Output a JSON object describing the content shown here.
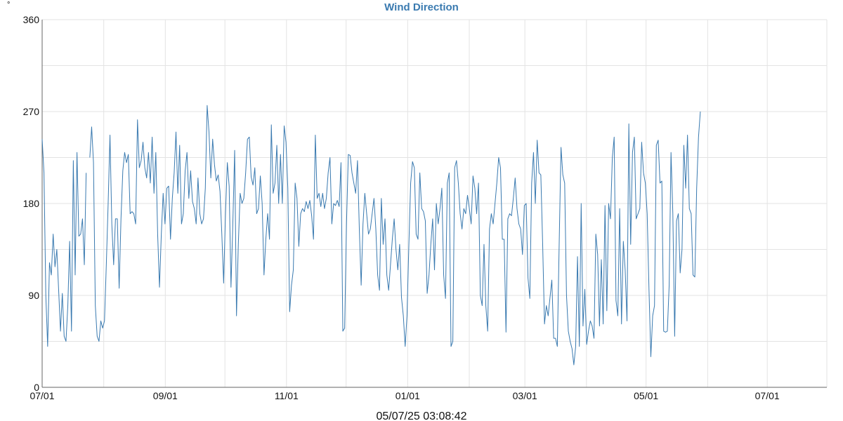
{
  "chart_data": {
    "type": "line",
    "title": "Wind Direction",
    "unit_label": "°",
    "ylim": [
      0,
      360
    ],
    "y_ticks": [
      "0",
      "90",
      "180",
      "270",
      "360"
    ],
    "x_ticks": [
      "07/01",
      "09/01",
      "11/01",
      "01/01",
      "03/01",
      "05/01",
      "07/01"
    ],
    "xlim": [
      "2024-07-01",
      "2025-07-31"
    ],
    "grid": true,
    "footer": "05/07/25 03:08:42",
    "series": [
      {
        "color": "#3a7ab0",
        "values": [
          243,
          210,
          90,
          40,
          122,
          110,
          150,
          118,
          135,
          95,
          55,
          92,
          50,
          45,
          80,
          143,
          55,
          222,
          110,
          230,
          148,
          150,
          165,
          120,
          210,
          null,
          225,
          255,
          220,
          80,
          50,
          45,
          65,
          58,
          65,
          120,
          180,
          247,
          160,
          120,
          165,
          165,
          97,
          165,
          212,
          230,
          220,
          228,
          170,
          172,
          170,
          160,
          262,
          215,
          222,
          240,
          215,
          205,
          230,
          200,
          245,
          190,
          230,
          150,
          98,
          150,
          190,
          160,
          195,
          197,
          145,
          185,
          210,
          250,
          190,
          237,
          160,
          170,
          212,
          230,
          185,
          212,
          182,
          175,
          160,
          205,
          170,
          160,
          165,
          195,
          276,
          250,
          205,
          243,
          218,
          202,
          208,
          192,
          150,
          102,
          170,
          220,
          197,
          98,
          160,
          232,
          70,
          140,
          190,
          180,
          185,
          210,
          243,
          245,
          206,
          198,
          215,
          170,
          175,
          207,
          180,
          110,
          145,
          170,
          145,
          257,
          190,
          200,
          237,
          180,
          228,
          180,
          256,
          240,
          195,
          74,
          100,
          115,
          200,
          185,
          138,
          170,
          175,
          172,
          182,
          175,
          183,
          168,
          145,
          247,
          185,
          190,
          177,
          190,
          175,
          185,
          210,
          225,
          160,
          180,
          178,
          183,
          177,
          220,
          55,
          58,
          160,
          228,
          227,
          210,
          200,
          190,
          222,
          155,
          100,
          160,
          190,
          170,
          150,
          155,
          170,
          185,
          155,
          110,
          95,
          185,
          140,
          165,
          110,
          95,
          120,
          145,
          165,
          135,
          115,
          140,
          88,
          70,
          40,
          70,
          138,
          200,
          221,
          215,
          150,
          145,
          210,
          175,
          172,
          163,
          92,
          110,
          140,
          165,
          115,
          180,
          160,
          175,
          195,
          110,
          87,
          200,
          210,
          40,
          45,
          215,
          222,
          200,
          170,
          155,
          175,
          170,
          188,
          175,
          160,
          207,
          195,
          170,
          200,
          90,
          80,
          140,
          80,
          55,
          155,
          170,
          160,
          180,
          200,
          225,
          215,
          145,
          145,
          54,
          165,
          170,
          168,
          185,
          205,
          175,
          160,
          155,
          130,
          178,
          180,
          107,
          87,
          200,
          230,
          180,
          242,
          210,
          208,
          140,
          62,
          80,
          70,
          88,
          105,
          48,
          48,
          40,
          140,
          235,
          208,
          200,
          90,
          55,
          45,
          38,
          22,
          40,
          128,
          40,
          180,
          60,
          96,
          42,
          55,
          65,
          60,
          48,
          150,
          130,
          60,
          125,
          62,
          178,
          75,
          180,
          165,
          225,
          245,
          85,
          70,
          175,
          62,
          143,
          115,
          65,
          258,
          140,
          230,
          245,
          165,
          170,
          175,
          240,
          210,
          200,
          170,
          95,
          30,
          70,
          80,
          237,
          242,
          200,
          202,
          55,
          54,
          55,
          100,
          230,
          170,
          50,
          163,
          170,
          112,
          135,
          237,
          195,
          247,
          175,
          170,
          110,
          108,
          195,
          245,
          270
        ]
      }
    ]
  }
}
